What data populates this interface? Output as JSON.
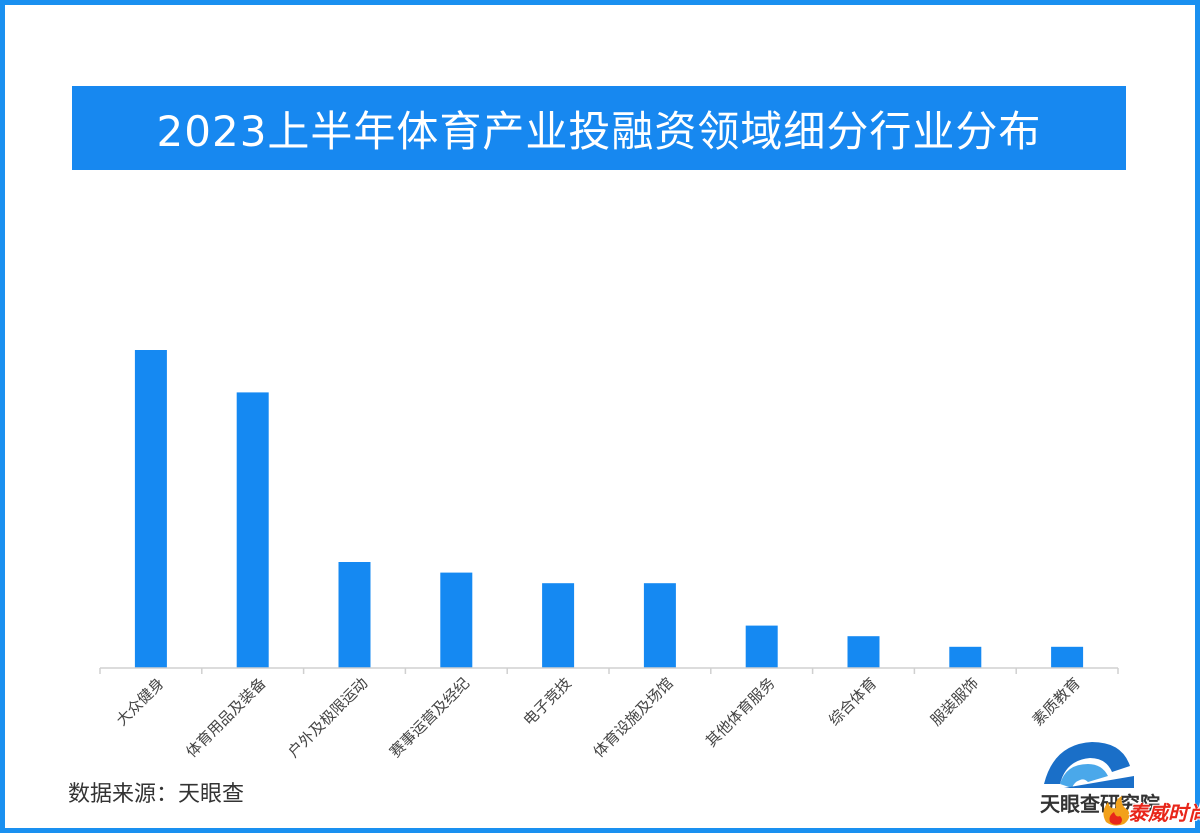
{
  "title": "2023上半年体育产业投融资领域细分行业分布",
  "source_text": "数据来源：天眼查",
  "logo_text": "天眼查研究院",
  "watermark_text": "泰威时尚",
  "colors": {
    "accent": "#1788f0",
    "bar": "#1589f2",
    "frame": "#1a90f0"
  },
  "chart_data": {
    "type": "bar",
    "title": "2023上半年体育产业投融资领域细分行业分布",
    "xlabel": "",
    "ylabel": "",
    "categories": [
      "大众健身",
      "体育用品及装备",
      "户外及极限运动",
      "赛事运营及经纪",
      "电子竞技",
      "体育设施及场馆",
      "其他体育服务",
      "综合体育",
      "服装服饰",
      "素质教育"
    ],
    "values": [
      30,
      26,
      10,
      9,
      8,
      8,
      4,
      3,
      2,
      2
    ],
    "ylim": [
      0,
      30
    ],
    "grid": false,
    "legend": "none"
  }
}
